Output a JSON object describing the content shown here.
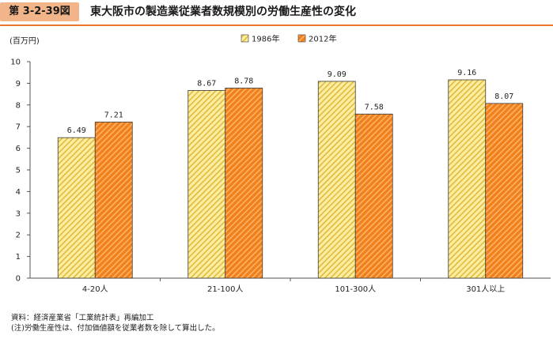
{
  "figure": {
    "number": "第 3-2-39図",
    "title": "東大阪市の製造業従業者数規模別の労働生産性の変化"
  },
  "notes": {
    "source": "資料：経済産業省「工業統計表」再編加工",
    "note": "(注)労働生産性は、付加価値額を従業者数を除して算出した。"
  },
  "colors": {
    "accent": "#e8772e",
    "series_1986_fill": "#fbeea0",
    "series_1986_stripe": "#e2b93c",
    "series_2012_fill": "#f07f1c",
    "series_2012_stripe": "#ffb466",
    "bar_border": "#3a3a3a"
  },
  "chart_data": {
    "type": "bar",
    "ylabel": "(百万円)",
    "ylim": [
      0,
      10
    ],
    "yticks": [
      "0",
      "1",
      "2",
      "3",
      "4",
      "5",
      "6",
      "7",
      "8",
      "9",
      "10"
    ],
    "categories": [
      "4-20人",
      "21-100人",
      "101-300人",
      "301人以上"
    ],
    "series": [
      {
        "name": "1986年",
        "values": [
          6.49,
          8.67,
          9.09,
          9.16
        ],
        "labels": [
          "6.49",
          "8.67",
          "9.09",
          "9.16"
        ]
      },
      {
        "name": "2012年",
        "values": [
          7.21,
          8.78,
          7.58,
          8.07
        ],
        "labels": [
          "7.21",
          "8.78",
          "7.58",
          "8.07"
        ]
      }
    ],
    "legend_position": "top-right",
    "grid": false
  }
}
